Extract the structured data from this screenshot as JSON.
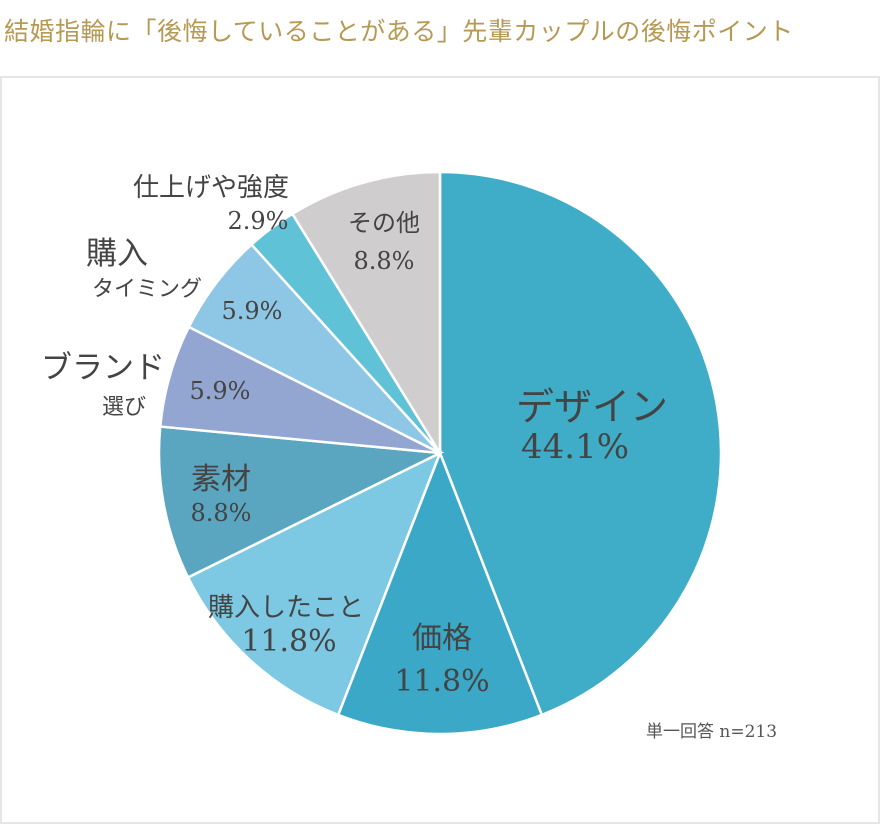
{
  "title": "結婚指輪に「後悔していることがある」先輩カップルの後悔ポイント",
  "note": "単一回答 n=213",
  "chart_data": {
    "type": "pie",
    "slices": [
      {
        "label": "デザイン",
        "value": 44.1,
        "value_label": "44.1%",
        "color": "#3fadc8"
      },
      {
        "label": "価格",
        "value": 11.8,
        "value_label": "11.8%",
        "color": "#3aa8c6"
      },
      {
        "label": "購入したこと",
        "value": 11.8,
        "value_label": "11.8%",
        "color": "#7dc9e3"
      },
      {
        "label": "素材",
        "value": 8.8,
        "value_label": "8.8%",
        "color": "#5aa6c0"
      },
      {
        "label": "ブランド選び",
        "value": 5.9,
        "value_label": "5.9%",
        "color": "#93a6d2"
      },
      {
        "label": "購入タイミング",
        "value": 5.9,
        "value_label": "5.9%",
        "color": "#8ec6e6"
      },
      {
        "label": "仕上げや強度",
        "value": 2.9,
        "value_label": "2.9%",
        "color": "#5fc2d6"
      },
      {
        "label": "その他",
        "value": 8.8,
        "value_label": "8.8%",
        "color": "#d0cdce"
      }
    ]
  }
}
